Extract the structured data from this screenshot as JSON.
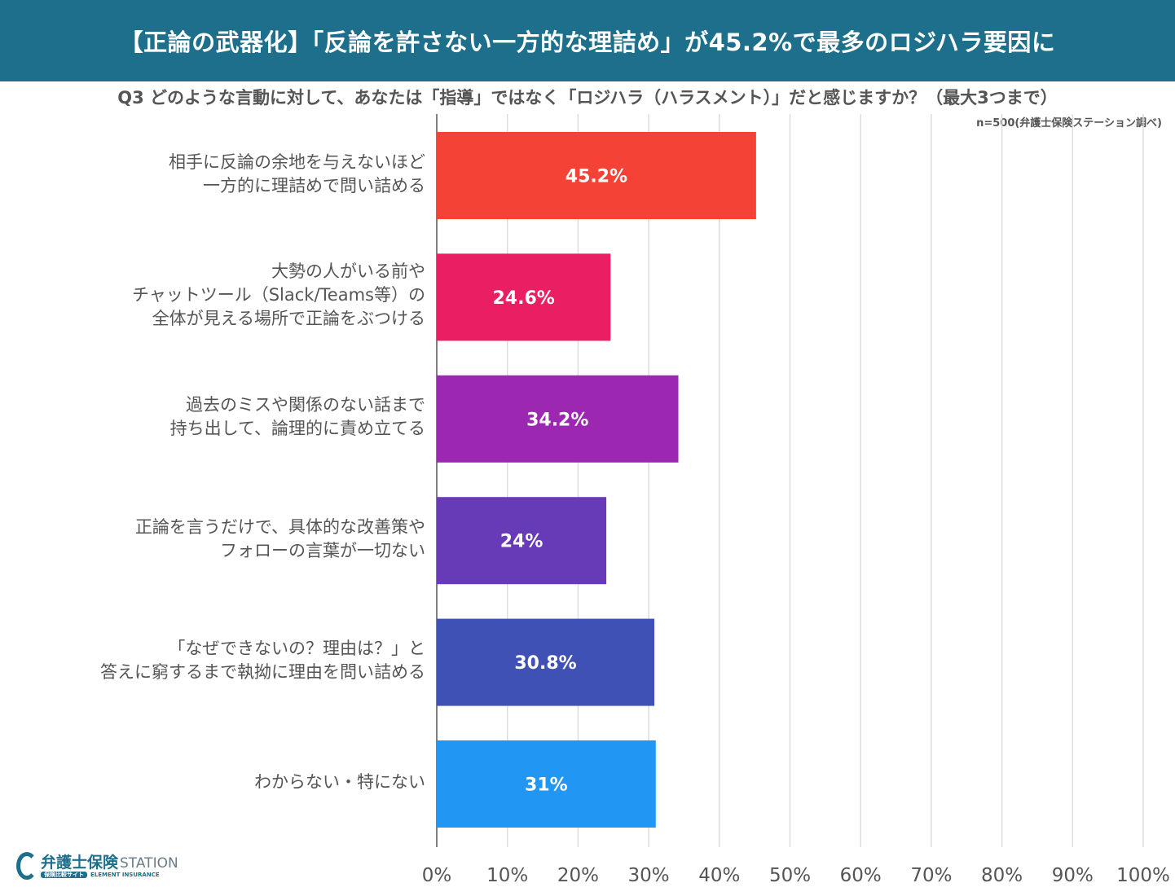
{
  "header": {
    "title": "【正論の武器化】「反論を許さない一方的な理詰め」が45.2%で最多のロジハラ要因に",
    "question": "Q3 どのような言動に対して、あなたは「指導」ではなく「ロジハラ（ハラスメント）」だと感じますか？（最大3つまで）",
    "note": "n=500(弁護士保険ステーション調べ)"
  },
  "logo": {
    "name": "弁護士保険",
    "station": "STATION",
    "pill": "保険比較サイト",
    "sub": "ELEMENT INSURANCE"
  },
  "chart_data": {
    "type": "bar",
    "orientation": "horizontal",
    "categories": [
      "相手に反論の余地を与えないほど\n一方的に理詰めで問い詰める",
      "大勢の人がいる前や\nチャットツール（Slack/Teams等）の\n全体が見える場所で正論をぶつける",
      "過去のミスや関係のない話まで\n持ち出して、論理的に責め立てる",
      "正論を言うだけで、具体的な改善策や\nフォローの言葉が一切ない",
      "「なぜできないの？理由は？」と\n答えに窮するまで執拗に理由を問い詰める",
      "わからない・特にない"
    ],
    "values": [
      45.2,
      24.6,
      34.2,
      24,
      30.8,
      31
    ],
    "data_labels": [
      "45.2%",
      "24.6%",
      "34.2%",
      "24%",
      "30.8%",
      "31%"
    ],
    "colors": [
      "#f44336",
      "#e91e63",
      "#9c27b0",
      "#673ab7",
      "#3f51b5",
      "#2196f3"
    ],
    "x_ticks": [
      "0%",
      "10%",
      "20%",
      "30%",
      "40%",
      "50%",
      "60%",
      "70%",
      "80%",
      "90%",
      "100%"
    ],
    "xlim": [
      0,
      100
    ],
    "grid": true
  }
}
